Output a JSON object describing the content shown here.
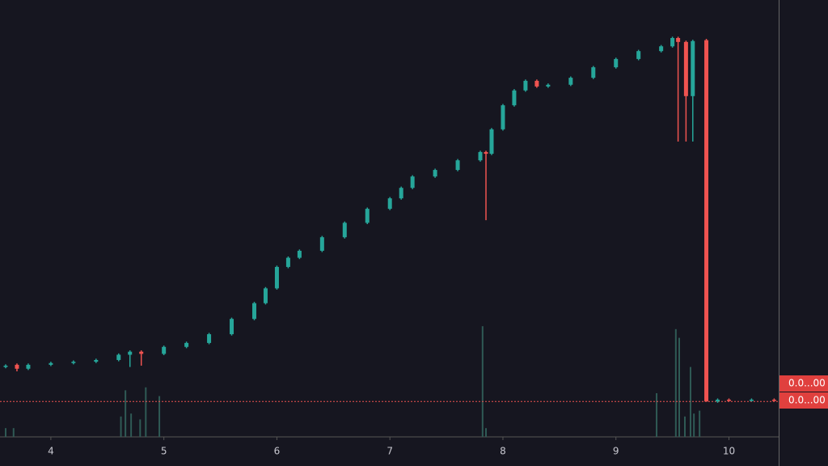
{
  "chart_data": {
    "type": "candlestick",
    "x": [
      3.6,
      3.7,
      3.8,
      4.0,
      4.2,
      4.4,
      4.6,
      4.7,
      4.8,
      5.0,
      5.2,
      5.4,
      5.6,
      5.8,
      5.9,
      6.0,
      6.1,
      6.2,
      6.4,
      6.6,
      6.8,
      7.0,
      7.1,
      7.2,
      7.4,
      7.6,
      7.8,
      7.85,
      7.9,
      8.0,
      8.1,
      8.2,
      8.3,
      8.4,
      8.6,
      8.8,
      9.0,
      9.2,
      9.4,
      9.5,
      9.55,
      9.62,
      9.68,
      9.8,
      9.9,
      10.0,
      10.2,
      10.4
    ],
    "open": [
      16.0,
      16.5,
      15.6,
      16.5,
      16.9,
      17.2,
      17.6,
      18.8,
      19.5,
      19.0,
      20.6,
      21.5,
      23.5,
      27,
      30.6,
      34,
      38.9,
      41,
      42.6,
      45.7,
      49,
      52.2,
      54.6,
      57,
      59.6,
      61.1,
      63.3,
      65.2,
      64.8,
      70.4,
      75.9,
      79.3,
      81.5,
      80.2,
      80.6,
      82.2,
      84.6,
      86.5,
      88.3,
      89.4,
      91.3,
      90.4,
      78,
      90.8,
      8.1,
      8.5,
      8.4,
      8.5
    ],
    "high": [
      16.6,
      16.8,
      16.8,
      17.2,
      17.5,
      17.9,
      19.1,
      19.8,
      19.8,
      20.9,
      21.8,
      23.8,
      27.3,
      30.9,
      34.3,
      39.2,
      41.3,
      42.9,
      46.0,
      49.3,
      52.5,
      54.9,
      57.3,
      59.9,
      61.4,
      63.6,
      65.5,
      65.5,
      70.7,
      76.2,
      79.6,
      81.8,
      81.8,
      80.9,
      82.5,
      84.9,
      86.8,
      88.6,
      89.7,
      91.6,
      91.6,
      90.7,
      90.9,
      91.1,
      8.8,
      8.8,
      8.8,
      8.8
    ],
    "low": [
      15.7,
      15.0,
      15.3,
      16.2,
      16.6,
      16.9,
      17.3,
      16.0,
      16.3,
      18.7,
      20.3,
      21.2,
      23.2,
      26.7,
      30.3,
      33.7,
      38.6,
      40.7,
      42.3,
      45.4,
      48.7,
      51.9,
      54.3,
      56.7,
      59.3,
      60.8,
      63.0,
      49.6,
      64.5,
      70.1,
      75.6,
      79.0,
      79.9,
      79.9,
      80.3,
      81.9,
      84.3,
      86.2,
      88.0,
      89.1,
      67.6,
      67.6,
      67.6,
      8.1,
      7.8,
      8.1,
      8.1,
      8.1
    ],
    "close": [
      16.3,
      15.6,
      16.5,
      16.9,
      17.2,
      17.6,
      18.8,
      19.5,
      19.0,
      20.6,
      21.5,
      23.5,
      27,
      30.6,
      34,
      38.9,
      41,
      42.6,
      45.7,
      49,
      52.2,
      54.6,
      57,
      59.6,
      61.1,
      63.3,
      65.2,
      64.8,
      70.4,
      75.9,
      79.3,
      81.5,
      80.2,
      80.6,
      82.2,
      84.6,
      86.5,
      88.3,
      89.4,
      91.3,
      90.4,
      78,
      90.6,
      8.1,
      8.5,
      8.4,
      8.5,
      8.4
    ],
    "up_color": "#26a69a",
    "down_color": "#ef5350",
    "volume": {
      "x": [
        3.6,
        3.67,
        4.62,
        4.66,
        4.71,
        4.79,
        4.84,
        4.96,
        7.82,
        7.85,
        9.36,
        9.53,
        9.56,
        9.61,
        9.66,
        9.69,
        9.74
      ],
      "values": [
        3,
        3,
        7,
        16,
        8,
        6,
        17,
        14,
        38,
        3,
        15,
        37,
        34,
        7,
        24,
        8,
        9
      ],
      "color": "#2f5a55",
      "axis": "y2"
    },
    "price_line": 8.1,
    "price_labels": [
      "0.0...00",
      "0.0...00"
    ],
    "xlim": [
      3.55,
      10.44
    ],
    "xticks": [
      4,
      5,
      6,
      7,
      8,
      9,
      10
    ],
    "ylim": [
      0,
      100
    ],
    "y2lim": [
      0,
      100
    ]
  }
}
